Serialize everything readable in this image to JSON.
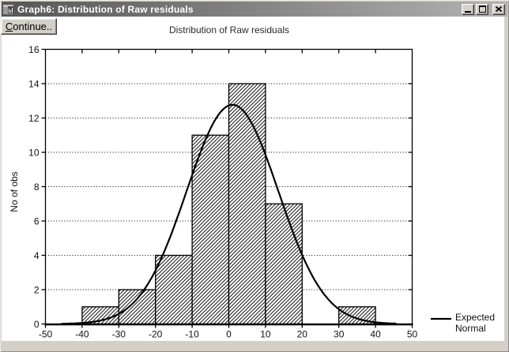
{
  "window": {
    "title": "Graph6: Distribution of Raw residuals",
    "icon": "graph-window-icon",
    "controls": [
      "minimize",
      "maximize",
      "close"
    ]
  },
  "toolbar": {
    "continue_label": "Continue.."
  },
  "colors": {
    "titlebar_gradient_left": "#565656",
    "titlebar_gradient_right": "#b2b2b2",
    "chrome": "#d4d0c8",
    "canvas": "#ffffff",
    "ink": "#000000"
  },
  "chart_data": {
    "type": "histogram",
    "title": "Distribution of Raw residuals",
    "xlabel": "",
    "ylabel": "No of obs",
    "xlim": [
      -50,
      50
    ],
    "ylim": [
      0,
      16
    ],
    "x_ticks": [
      -50,
      -40,
      -30,
      -20,
      -10,
      0,
      10,
      20,
      30,
      40,
      50
    ],
    "y_ticks": [
      0,
      2,
      4,
      6,
      8,
      10,
      12,
      14,
      16
    ],
    "grid": "horizontal dotted lines at y = 2,4,6,8,10,12,14",
    "bin_width": 10,
    "total_obs": 40,
    "bins": [
      {
        "start": -50,
        "end": -40,
        "count": 0
      },
      {
        "start": -40,
        "end": -30,
        "count": 1
      },
      {
        "start": -30,
        "end": -20,
        "count": 2
      },
      {
        "start": -20,
        "end": -10,
        "count": 4
      },
      {
        "start": -10,
        "end": 0,
        "count": 11
      },
      {
        "start": 0,
        "end": 10,
        "count": 14
      },
      {
        "start": 10,
        "end": 20,
        "count": 7
      },
      {
        "start": 20,
        "end": 30,
        "count": 0
      },
      {
        "start": 30,
        "end": 40,
        "count": 1
      },
      {
        "start": 40,
        "end": 50,
        "count": 0
      }
    ],
    "normal_curve": {
      "mean": 1,
      "sd": 12.5,
      "peak": 12.77
    },
    "legend_label": "Expected Normal",
    "legend_lines": [
      "Expected",
      "Normal"
    ],
    "legend_position": "bottom-right"
  }
}
